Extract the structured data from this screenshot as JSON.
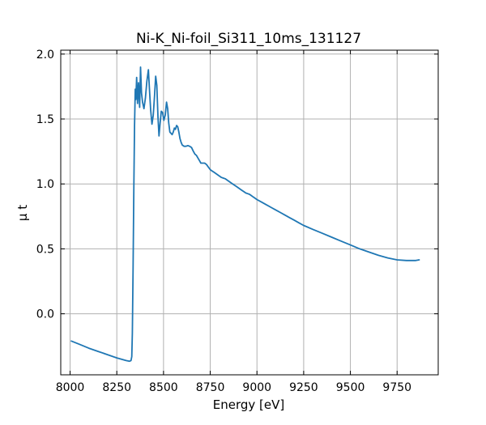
{
  "chart_data": {
    "type": "line",
    "title": "Ni-K_Ni-foil_Si311_10ms_131127",
    "xlabel": "Energy [eV]",
    "ylabel": "μ t",
    "xlim": [
      7950,
      9970
    ],
    "ylim": [
      -0.47,
      2.03
    ],
    "xticks": [
      8000,
      8250,
      8500,
      8750,
      9000,
      9250,
      9500,
      9750
    ],
    "yticks": [
      0.0,
      0.5,
      1.0,
      1.5,
      2.0
    ],
    "xtick_labels": [
      "8000",
      "8250",
      "8500",
      "8750",
      "9000",
      "9250",
      "9500",
      "9750"
    ],
    "ytick_labels": [
      "0.0",
      "0.5",
      "1.0",
      "1.5",
      "2.0"
    ],
    "grid": true,
    "colors": {
      "line": "#1f77b4",
      "grid": "#b0b0b0",
      "axes": "#000000"
    },
    "series": [
      {
        "x": [
          8007,
          8050,
          8100,
          8150,
          8200,
          8250,
          8300,
          8318,
          8326,
          8330,
          8333,
          8337,
          8341,
          8345,
          8349,
          8352,
          8356,
          8361,
          8366,
          8372,
          8377,
          8382,
          8388,
          8395,
          8403,
          8411,
          8419,
          8425,
          8431,
          8438,
          8445,
          8452,
          8458,
          8464,
          8470,
          8476,
          8482,
          8488,
          8495,
          8502,
          8509,
          8516,
          8522,
          8528,
          8534,
          8540,
          8546,
          8552,
          8558,
          8564,
          8570,
          8576,
          8582,
          8588,
          8594,
          8600,
          8610,
          8620,
          8630,
          8640,
          8650,
          8660,
          8668,
          8676,
          8684,
          8692,
          8700,
          8710,
          8720,
          8730,
          8740,
          8750,
          8760,
          8770,
          8780,
          8790,
          8800,
          8810,
          8820,
          8830,
          8840,
          8850,
          8860,
          8870,
          8880,
          8890,
          8900,
          8910,
          8920,
          8930,
          8940,
          8950,
          8960,
          8970,
          8980,
          8990,
          9000,
          9025,
          9050,
          9075,
          9100,
          9125,
          9150,
          9175,
          9200,
          9225,
          9250,
          9300,
          9350,
          9400,
          9450,
          9500,
          9550,
          9600,
          9650,
          9700,
          9750,
          9800,
          9850,
          9868
        ],
        "y": [
          -0.21,
          -0.235,
          -0.265,
          -0.29,
          -0.315,
          -0.34,
          -0.36,
          -0.365,
          -0.36,
          -0.33,
          -0.15,
          0.35,
          0.95,
          1.45,
          1.73,
          1.65,
          1.82,
          1.62,
          1.78,
          1.59,
          1.9,
          1.7,
          1.63,
          1.58,
          1.66,
          1.79,
          1.88,
          1.72,
          1.57,
          1.46,
          1.53,
          1.68,
          1.83,
          1.76,
          1.52,
          1.37,
          1.47,
          1.56,
          1.55,
          1.49,
          1.53,
          1.63,
          1.58,
          1.47,
          1.4,
          1.39,
          1.38,
          1.4,
          1.43,
          1.42,
          1.45,
          1.44,
          1.4,
          1.35,
          1.32,
          1.3,
          1.29,
          1.29,
          1.295,
          1.29,
          1.28,
          1.25,
          1.23,
          1.22,
          1.2,
          1.18,
          1.16,
          1.16,
          1.16,
          1.15,
          1.13,
          1.11,
          1.1,
          1.09,
          1.08,
          1.07,
          1.06,
          1.05,
          1.045,
          1.04,
          1.03,
          1.02,
          1.01,
          1.0,
          0.99,
          0.98,
          0.97,
          0.96,
          0.95,
          0.94,
          0.93,
          0.925,
          0.92,
          0.91,
          0.9,
          0.89,
          0.88,
          0.86,
          0.84,
          0.82,
          0.8,
          0.78,
          0.76,
          0.74,
          0.72,
          0.7,
          0.68,
          0.65,
          0.62,
          0.59,
          0.56,
          0.53,
          0.5,
          0.475,
          0.45,
          0.43,
          0.415,
          0.41,
          0.41,
          0.415
        ]
      }
    ]
  }
}
